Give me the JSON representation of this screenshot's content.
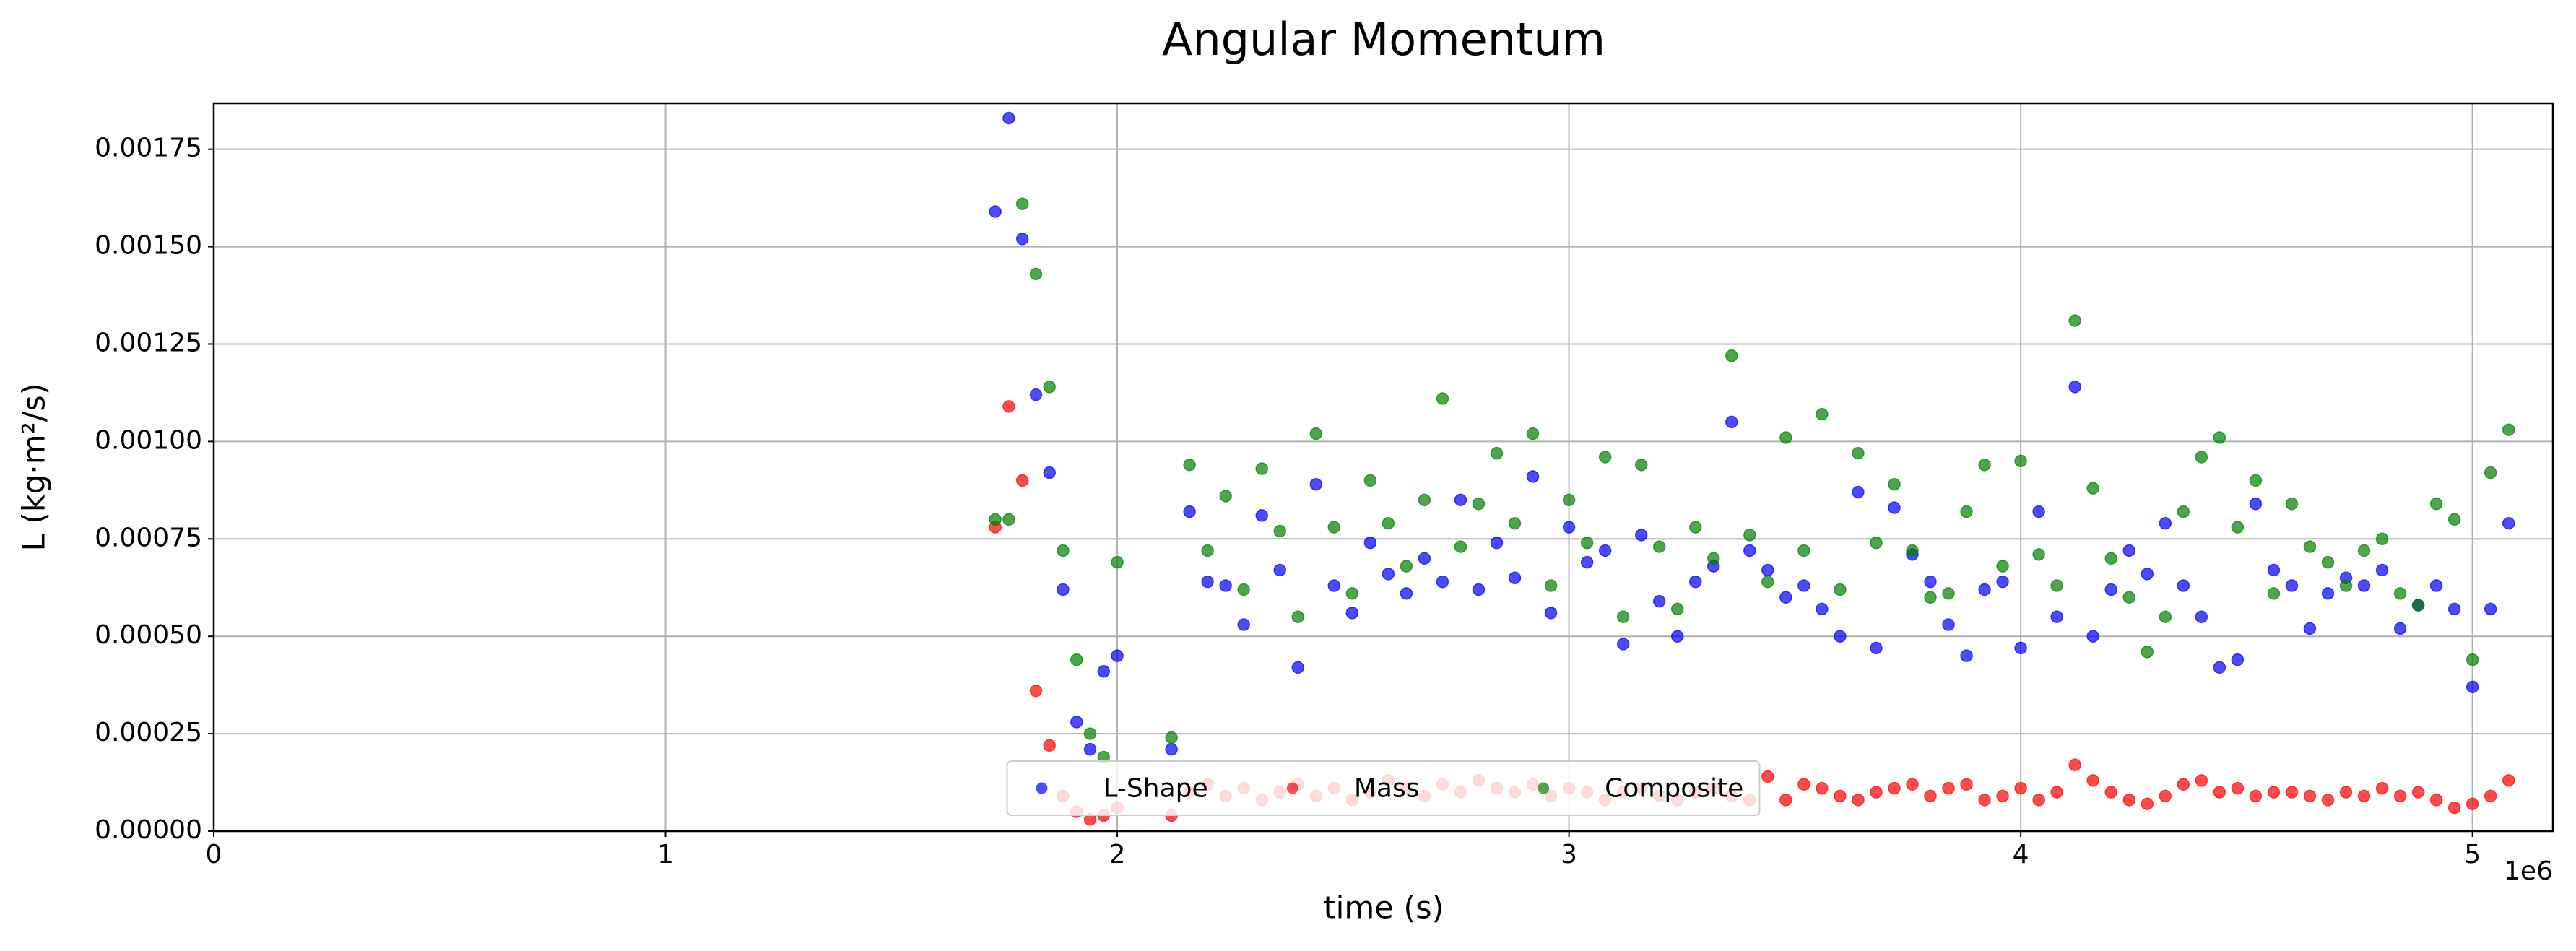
{
  "chart_data": {
    "type": "scatter",
    "title": "Angular Momentum",
    "x_label": "time (s)",
    "y_label": "L (kg·m²/s)",
    "x_offset_label": "1e6",
    "xlim": [
      0,
      5178000
    ],
    "ylim": [
      0,
      0.001868
    ],
    "xticks": [
      0,
      {
        "value": 1000000,
        "label": "1"
      },
      {
        "value": 2000000,
        "label": "2"
      },
      {
        "value": 3000000,
        "label": "3"
      },
      {
        "value": 4000000,
        "label": "4"
      },
      {
        "value": 5000000,
        "label": "5"
      }
    ],
    "yticks": [
      {
        "value": 0,
        "label": "0.00000"
      },
      {
        "value": 0.00025,
        "label": "0.00025"
      },
      {
        "value": 0.0005,
        "label": "0.00050"
      },
      {
        "value": 0.00075,
        "label": "0.00075"
      },
      {
        "value": 0.001,
        "label": "0.00100"
      },
      {
        "value": 0.00125,
        "label": "0.00125"
      },
      {
        "value": 0.0015,
        "label": "0.00150"
      },
      {
        "value": 0.00175,
        "label": "0.00175"
      }
    ],
    "grid": true,
    "legend_loc": "lower center",
    "alpha": 0.7,
    "x": [
      1730000,
      1760000,
      1790000,
      1820000,
      1850000,
      1880000,
      1910000,
      1940000,
      1970000,
      2000000,
      2120000,
      2160000,
      2200000,
      2240000,
      2280000,
      2320000,
      2360000,
      2400000,
      2440000,
      2480000,
      2520000,
      2560000,
      2600000,
      2640000,
      2680000,
      2720000,
      2760000,
      2800000,
      2840000,
      2880000,
      2920000,
      2960000,
      3000000,
      3040000,
      3080000,
      3120000,
      3160000,
      3200000,
      3240000,
      3280000,
      3320000,
      3360000,
      3400000,
      3440000,
      3480000,
      3520000,
      3560000,
      3600000,
      3640000,
      3680000,
      3720000,
      3760000,
      3800000,
      3840000,
      3880000,
      3920000,
      3960000,
      4000000,
      4040000,
      4080000,
      4120000,
      4160000,
      4200000,
      4240000,
      4280000,
      4320000,
      4360000,
      4400000,
      4440000,
      4480000,
      4520000,
      4560000,
      4600000,
      4640000,
      4680000,
      4720000,
      4760000,
      4800000,
      4840000,
      4880000,
      4920000,
      4960000,
      5000000,
      5040000,
      5080000
    ],
    "series": [
      {
        "name": "L-Shape",
        "color": "#0000ff",
        "values": [
          0.00159,
          0.00183,
          0.00152,
          0.00112,
          0.00092,
          0.00062,
          0.00028,
          0.00021,
          0.00041,
          0.00045,
          0.00021,
          0.00082,
          0.00064,
          0.00063,
          0.00053,
          0.00081,
          0.00067,
          0.00042,
          0.00089,
          0.00063,
          0.00056,
          0.00074,
          0.00066,
          0.00061,
          0.0007,
          0.00064,
          0.00085,
          0.00062,
          0.00074,
          0.00065,
          0.00091,
          0.00056,
          0.00078,
          0.00069,
          0.00072,
          0.00048,
          0.00076,
          0.00059,
          0.0005,
          0.00064,
          0.00068,
          0.00105,
          0.00072,
          0.00067,
          0.0006,
          0.00063,
          0.00057,
          0.0005,
          0.00087,
          0.00047,
          0.00083,
          0.00071,
          0.00064,
          0.00053,
          0.00045,
          0.00062,
          0.00064,
          0.00047,
          0.00082,
          0.00055,
          0.00114,
          0.0005,
          0.00062,
          0.00072,
          0.00066,
          0.00079,
          0.00063,
          0.00055,
          0.00042,
          0.00044,
          0.00084,
          0.00067,
          0.00063,
          0.00052,
          0.00061,
          0.00065,
          0.00063,
          0.00067,
          0.00052,
          0.00058,
          0.00063,
          0.00057,
          0.00037,
          0.00057,
          0.00079
        ]
      },
      {
        "name": "Mass",
        "color": "#ff0000",
        "values": [
          0.00078,
          0.00109,
          0.0009,
          0.00036,
          0.00022,
          9e-05,
          5e-05,
          3e-05,
          4e-05,
          6e-05,
          4e-05,
          0.0001,
          0.00012,
          9e-05,
          0.00011,
          8e-05,
          0.0001,
          0.00012,
          9e-05,
          0.00011,
          8e-05,
          0.0001,
          0.00013,
          0.00011,
          9e-05,
          0.00012,
          0.0001,
          0.00013,
          0.00011,
          0.0001,
          0.00012,
          9e-05,
          0.00011,
          0.0001,
          8e-05,
          0.0001,
          0.00011,
          9e-05,
          8e-05,
          0.0001,
          0.00011,
          9e-05,
          8e-05,
          0.00014,
          8e-05,
          0.00012,
          0.00011,
          9e-05,
          8e-05,
          0.0001,
          0.00011,
          0.00012,
          9e-05,
          0.00011,
          0.00012,
          8e-05,
          9e-05,
          0.00011,
          8e-05,
          0.0001,
          0.00017,
          0.00013,
          0.0001,
          8e-05,
          7e-05,
          9e-05,
          0.00012,
          0.00013,
          0.0001,
          0.00011,
          9e-05,
          0.0001,
          0.0001,
          9e-05,
          8e-05,
          0.0001,
          9e-05,
          0.00011,
          9e-05,
          0.0001,
          8e-05,
          6e-05,
          7e-05,
          9e-05,
          0.00013
        ]
      },
      {
        "name": "Composite",
        "color": "#008000",
        "values": [
          0.0008,
          0.0008,
          0.00161,
          0.00143,
          0.00114,
          0.00072,
          0.00044,
          0.00025,
          0.00019,
          0.00069,
          0.00024,
          0.00094,
          0.00072,
          0.00086,
          0.00062,
          0.00093,
          0.00077,
          0.00055,
          0.00102,
          0.00078,
          0.00061,
          0.0009,
          0.00079,
          0.00068,
          0.00085,
          0.00111,
          0.00073,
          0.00084,
          0.00097,
          0.00079,
          0.00102,
          0.00063,
          0.00085,
          0.00074,
          0.00096,
          0.00055,
          0.00094,
          0.00073,
          0.00057,
          0.00078,
          0.0007,
          0.00122,
          0.00076,
          0.00064,
          0.00101,
          0.00072,
          0.00107,
          0.00062,
          0.00097,
          0.00074,
          0.00089,
          0.00072,
          0.0006,
          0.00061,
          0.00082,
          0.00094,
          0.00068,
          0.00095,
          0.00071,
          0.00063,
          0.00131,
          0.00088,
          0.0007,
          0.0006,
          0.00046,
          0.00055,
          0.00082,
          0.00096,
          0.00101,
          0.00078,
          0.0009,
          0.00061,
          0.00084,
          0.00073,
          0.00069,
          0.00063,
          0.00072,
          0.00075,
          0.00061,
          0.00058,
          0.00084,
          0.0008,
          0.00044,
          0.00092,
          0.00103
        ]
      }
    ]
  }
}
